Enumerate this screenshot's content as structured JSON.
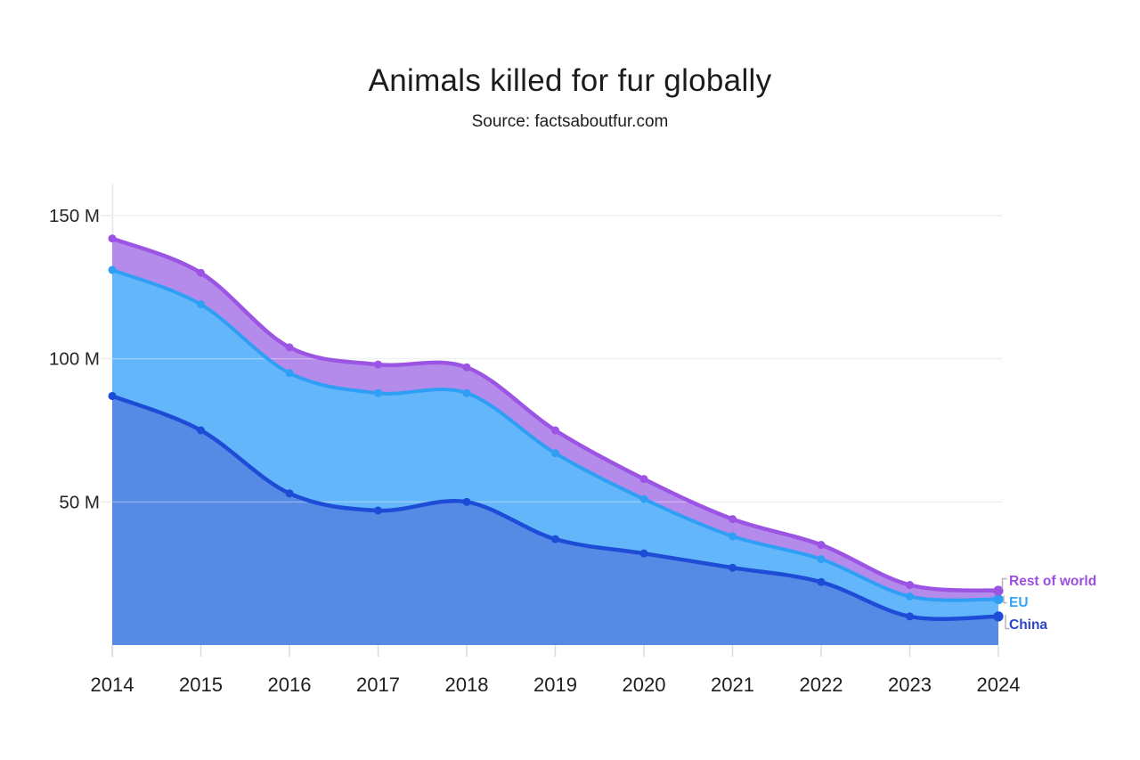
{
  "title": "Animals killed for fur globally",
  "subtitle": "Source: factsaboutfur.com",
  "colors": {
    "background": "#ffffff",
    "gridline": "#ececef",
    "axis_line": "#e6e6ea",
    "tick": "#d9d9de",
    "title_text": "#1c1c1c",
    "axis_text": "#262626",
    "legend_connector": "#b0b0b6"
  },
  "chart_data": {
    "type": "area",
    "stacked": true,
    "title": "Animals killed for fur globally",
    "subtitle": "Source: factsaboutfur.com",
    "categories": [
      "2014",
      "2015",
      "2016",
      "2017",
      "2018",
      "2019",
      "2020",
      "2021",
      "2022",
      "2023",
      "2024"
    ],
    "unit": "M (millions of animals)",
    "ylim": [
      0,
      155
    ],
    "grid": true,
    "legend_position": "right-end",
    "y_ticks": [
      {
        "label": "50 M",
        "value": 50
      },
      {
        "label": "100 M",
        "value": 100
      },
      {
        "label": "150 M",
        "value": 150
      }
    ],
    "series": [
      {
        "name": "China",
        "values": [
          87,
          75,
          53,
          47,
          50,
          37,
          32,
          27,
          22,
          10,
          10
        ],
        "line_color": "#1d4cd7",
        "fill_color": "#568ae5",
        "label_color": "#2b44cf"
      },
      {
        "name": "EU",
        "values": [
          44,
          44,
          42,
          41,
          38,
          30,
          19,
          11,
          8,
          7,
          6
        ],
        "line_color": "#2e9ff4",
        "fill_color": "#64b6fa",
        "label_color": "#35a2f5"
      },
      {
        "name": "Rest of world",
        "values": [
          11,
          11,
          9,
          10,
          9,
          8,
          7,
          6,
          5,
          4,
          3
        ],
        "line_color": "#9b54e3",
        "fill_color": "#b48bea",
        "label_color": "#9b4fe0"
      }
    ],
    "stacked_totals": [
      142,
      130,
      104,
      98,
      97,
      75,
      58,
      44,
      35,
      21,
      19
    ]
  }
}
